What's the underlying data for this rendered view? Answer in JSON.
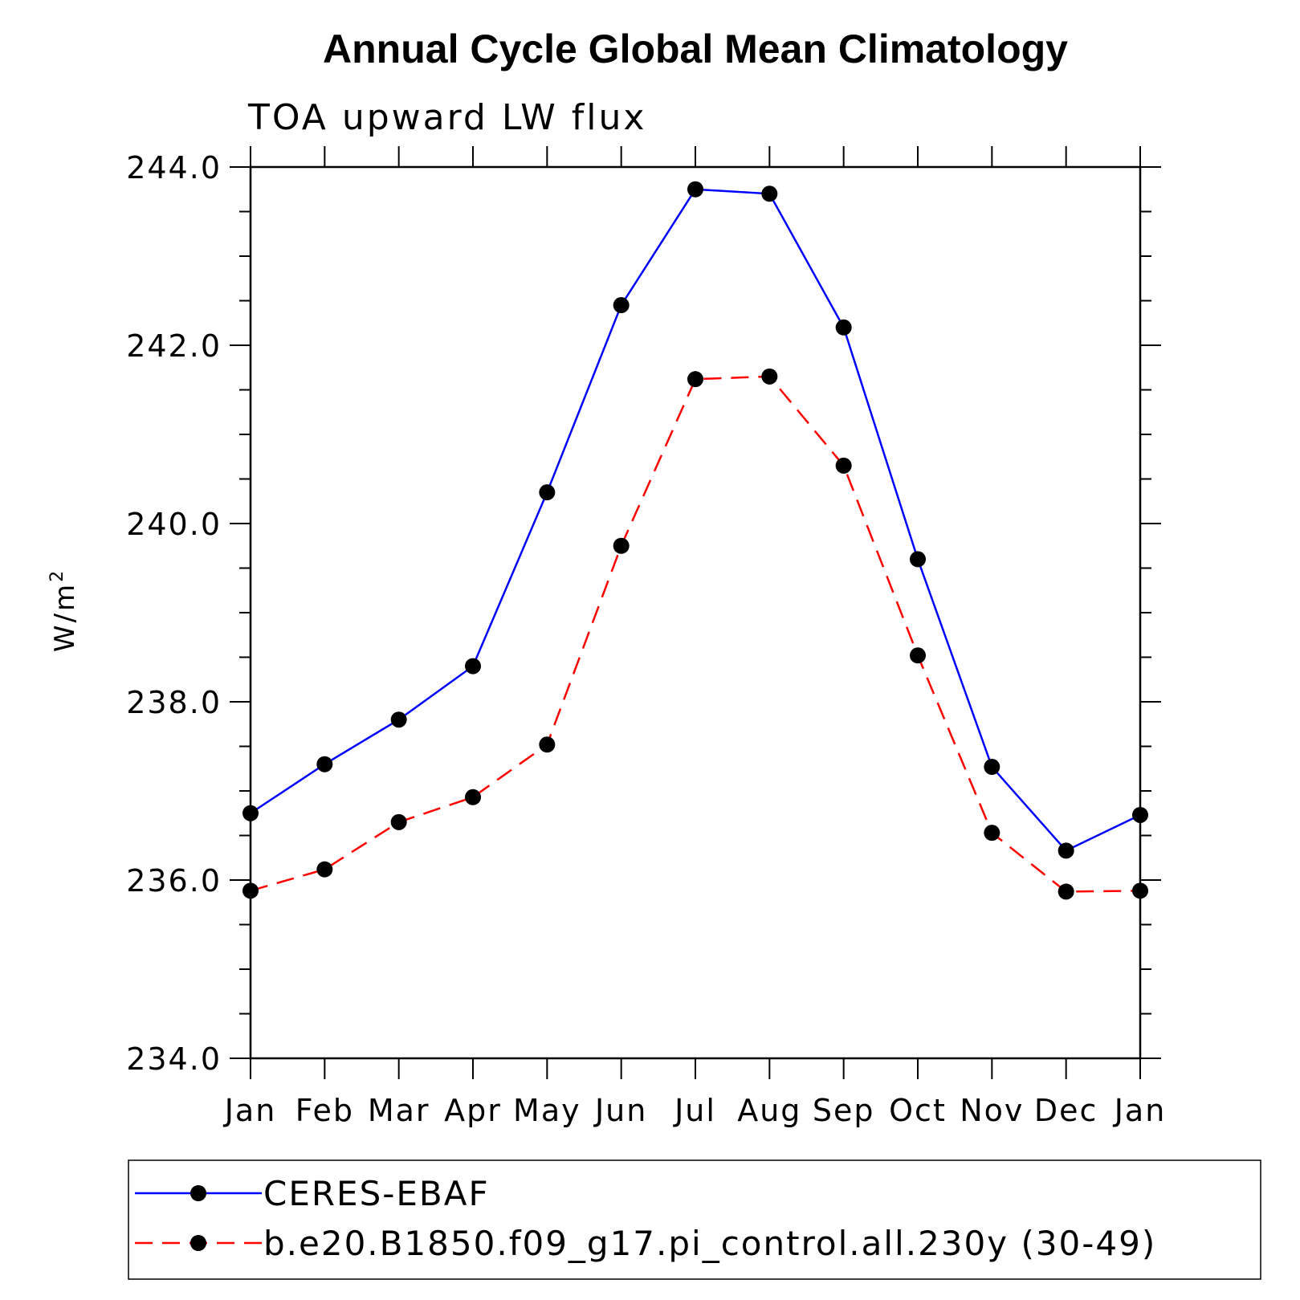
{
  "chart_data": {
    "type": "line",
    "title": "Annual Cycle Global Mean Climatology",
    "subtitle": "TOA upward LW flux",
    "ylabel_base": "W/m",
    "ylabel_sup": "2",
    "categories": [
      "Jan",
      "Feb",
      "Mar",
      "Apr",
      "May",
      "Jun",
      "Jul",
      "Aug",
      "Sep",
      "Oct",
      "Nov",
      "Dec",
      "Jan"
    ],
    "ylim": [
      234.0,
      244.0
    ],
    "yticks": [
      "234.0",
      "236.0",
      "238.0",
      "240.0",
      "242.0",
      "244.0"
    ],
    "series": [
      {
        "name": "CERES-EBAF",
        "color": "#0000ff",
        "dash": "solid",
        "values": [
          236.75,
          237.3,
          237.8,
          238.4,
          240.35,
          242.45,
          243.75,
          243.7,
          242.2,
          239.6,
          237.27,
          236.33,
          236.73
        ]
      },
      {
        "name": "b.e20.B1850.f09_g17.pi_control.all.230y (30-49)",
        "color": "#ff0000",
        "dash": "dashed",
        "values": [
          235.88,
          236.12,
          236.65,
          236.93,
          237.52,
          239.75,
          241.62,
          241.65,
          240.65,
          238.52,
          236.53,
          235.87,
          235.88
        ]
      }
    ]
  }
}
